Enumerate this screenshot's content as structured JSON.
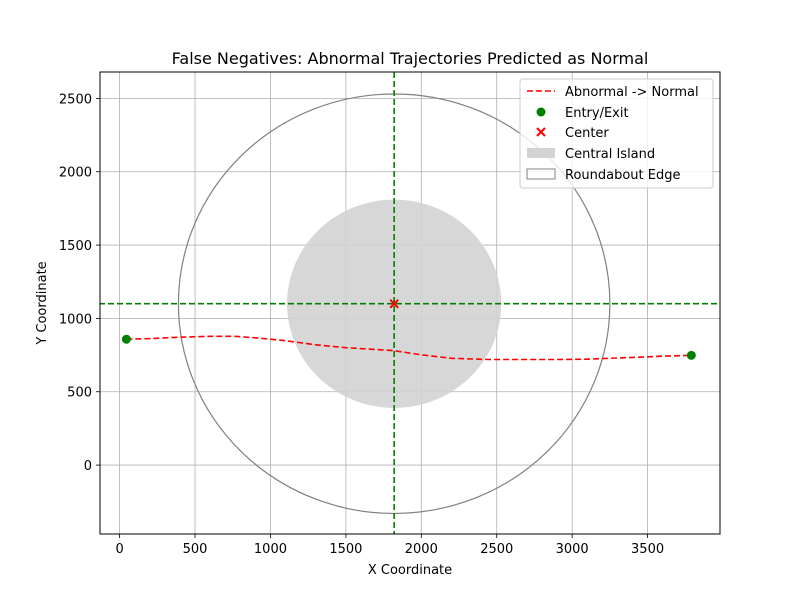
{
  "chart_data": {
    "type": "line",
    "title": "False Negatives: Abnormal Trajectories Predicted as Normal",
    "xlabel": "X Coordinate",
    "ylabel": "Y Coordinate",
    "xlim": [
      -130,
      3980
    ],
    "ylim": [
      -470,
      2680
    ],
    "xticks": [
      0,
      500,
      1000,
      1500,
      2000,
      2500,
      3000,
      3500
    ],
    "yticks": [
      0,
      500,
      1000,
      1500,
      2000,
      2500
    ],
    "grid": true,
    "series": [
      {
        "name": "Abnormal -> Normal",
        "style": "dashed",
        "color": "#ff0000",
        "x": [
          45,
          200,
          400,
          600,
          760,
          900,
          1100,
          1300,
          1500,
          1700,
          1820,
          2000,
          2200,
          2450,
          2700,
          2900,
          3100,
          3300,
          3500,
          3650,
          3790
        ],
        "y": [
          858,
          862,
          872,
          878,
          878,
          868,
          848,
          820,
          800,
          788,
          780,
          752,
          728,
          720,
          720,
          720,
          722,
          730,
          738,
          744,
          748
        ]
      }
    ],
    "entry_exit": {
      "name": "Entry/Exit",
      "color": "#008000",
      "points": [
        {
          "x": 45,
          "y": 858
        },
        {
          "x": 3790,
          "y": 748
        }
      ]
    },
    "center": {
      "name": "Center",
      "color": "#ff0000",
      "x": 1820,
      "y": 1100
    },
    "central_island": {
      "name": "Central Island",
      "cx": 1820,
      "cy": 1100,
      "r": 710,
      "color": "#d3d3d3"
    },
    "roundabout_edge": {
      "name": "Roundabout Edge",
      "cx": 1820,
      "cy": 1100,
      "r": 1430,
      "color": "#808080"
    },
    "reference_lines": {
      "color": "#008000",
      "vertical_x": 1820,
      "horizontal_y": 1100
    },
    "legend": {
      "placement": "top-right",
      "entries": [
        "Abnormal -> Normal",
        "Entry/Exit",
        "Center",
        "Central Island",
        "Roundabout Edge"
      ]
    }
  }
}
